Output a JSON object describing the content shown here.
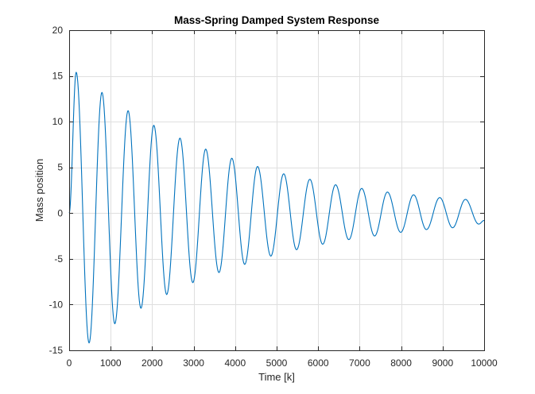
{
  "chart_data": {
    "type": "line",
    "title": "Mass-Spring Damped System Response",
    "xlabel": "Time [k]",
    "ylabel": "Mass position",
    "xlim": [
      0,
      10000
    ],
    "ylim": [
      -15,
      20
    ],
    "xticks": [
      0,
      1000,
      2000,
      3000,
      4000,
      5000,
      6000,
      7000,
      8000,
      9000,
      10000
    ],
    "yticks": [
      -15,
      -10,
      -5,
      0,
      5,
      10,
      15,
      20
    ],
    "xtick_labels": [
      "0",
      "1000",
      "2000",
      "3000",
      "4000",
      "5000",
      "6000",
      "7000",
      "8000",
      "9000",
      "10000"
    ],
    "ytick_labels": [
      "-15",
      "-10",
      "-5",
      "0",
      "5",
      "10",
      "15",
      "20"
    ],
    "grid": true,
    "legend": "none",
    "series": [
      {
        "color": "#0072bd",
        "x": [
          0,
          170,
          480,
          790,
          1100,
          1420,
          1730,
          2040,
          2350,
          2670,
          2980,
          3290,
          3610,
          3920,
          4230,
          4540,
          4860,
          5170,
          5480,
          5800,
          6110,
          6420,
          6740,
          7050,
          7360,
          7670,
          7990,
          8300,
          8610,
          8930,
          9240,
          9550,
          9870,
          10000
        ],
        "y": [
          0,
          15.4,
          -14.2,
          13.2,
          -12.1,
          11.2,
          -10.4,
          9.6,
          -8.9,
          8.2,
          -7.6,
          7.0,
          -6.5,
          6.0,
          -5.6,
          5.1,
          -4.7,
          4.3,
          -4.0,
          3.7,
          -3.4,
          3.1,
          -2.9,
          2.7,
          -2.5,
          2.3,
          -2.1,
          2.0,
          -1.8,
          1.7,
          -1.6,
          1.5,
          -1.2,
          -0.8
        ]
      }
    ]
  }
}
